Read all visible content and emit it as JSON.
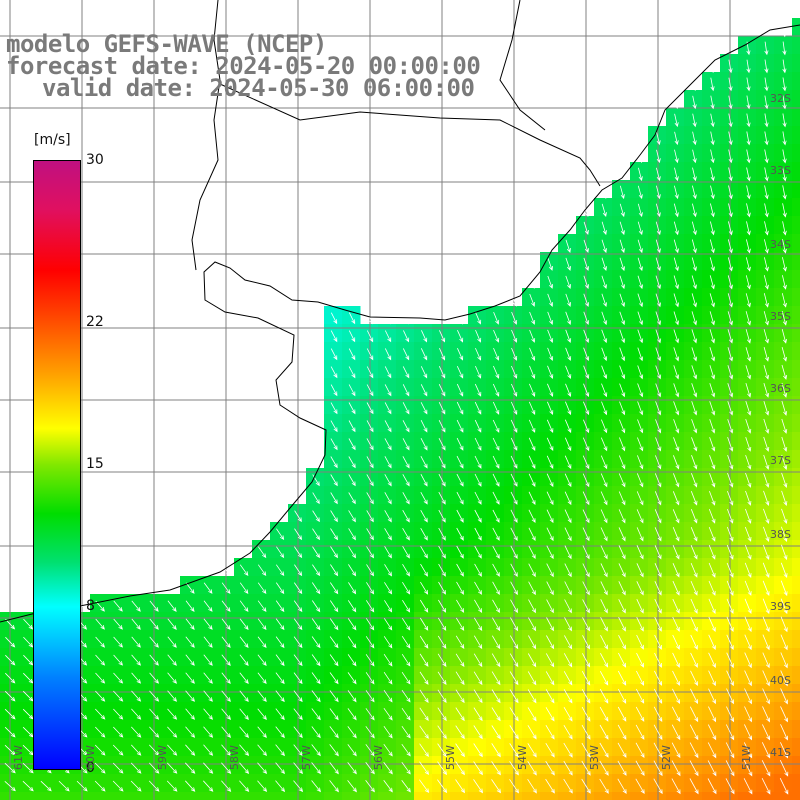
{
  "title": {
    "model": "modelo GEFS-WAVE (NCEP)",
    "forecast": "forecast date: 2024-05-20 00:00:00",
    "valid": "valid date: 2024-05-30 06:00:00"
  },
  "colorbar": {
    "unit": "[m/s]",
    "ticks": [
      {
        "label": "30",
        "value": 30
      },
      {
        "label": "22",
        "value": 22
      },
      {
        "label": "15",
        "value": 15
      },
      {
        "label": "8",
        "value": 8
      },
      {
        "label": "0",
        "value": 0
      }
    ],
    "range": [
      0,
      30
    ]
  },
  "lat_labels": [
    "32S",
    "33S",
    "34S",
    "35S",
    "36S",
    "37S",
    "38S",
    "39S",
    "40S",
    "41S"
  ],
  "lon_labels": [
    "61W",
    "60W",
    "59W",
    "58W",
    "57W",
    "56W",
    "55W",
    "54W",
    "53W",
    "52W",
    "51W"
  ],
  "map": {
    "field": "wind speed",
    "wind_direction": "from north-northwest toward south-southeast",
    "colors": {
      "land": "#ffffff",
      "grid": "#808080",
      "coast": "#000000",
      "arrows": "#ffffff"
    }
  }
}
